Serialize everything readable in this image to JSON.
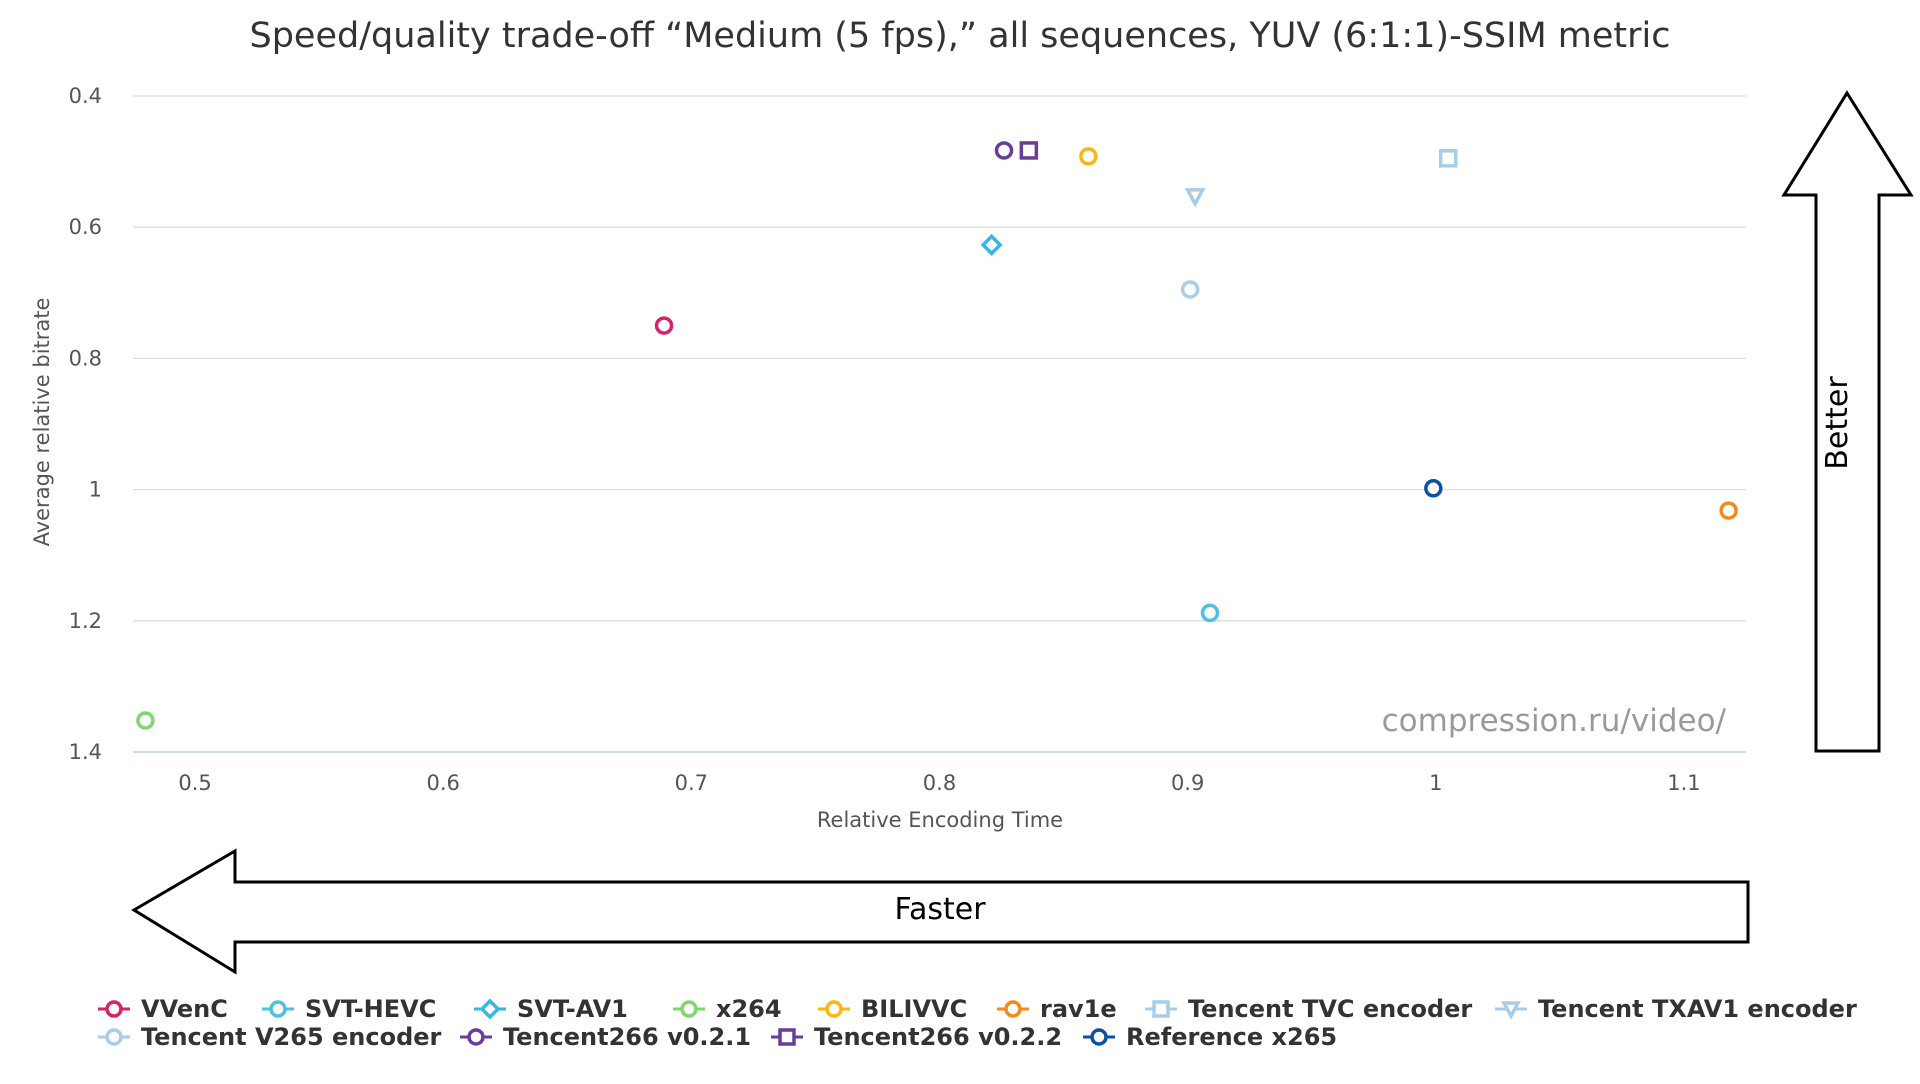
{
  "chart_data": {
    "type": "scatter",
    "title": "Speed/quality trade-off “Medium (5 fps),” all sequences, YUV (6:1:1)-SSIM metric",
    "xlabel": "Relative Encoding Time",
    "ylabel": "Average relative bitrate",
    "xlim": [
      0.475,
      1.125
    ],
    "ylim": [
      0.4,
      1.4
    ],
    "y_reversed": true,
    "x_ticks": [
      "0.5",
      "0.6",
      "0.7",
      "0.8",
      "0.9",
      "1",
      "1.1"
    ],
    "y_ticks": [
      "0.4",
      "0.6",
      "0.8",
      "1",
      "1.2",
      "1.4"
    ],
    "grid": true,
    "legend_position": "bottom",
    "watermark": "compression.ru/video/",
    "arrows": {
      "left_label": "Faster",
      "up_label": "Better"
    },
    "series": [
      {
        "name": "VVenC",
        "marker": "circle",
        "color": "#d6236a",
        "x": 0.689,
        "y": 0.75
      },
      {
        "name": "SVT-HEVC",
        "marker": "circle",
        "color": "#4fc1e0",
        "x": 0.909,
        "y": 1.188
      },
      {
        "name": "SVT-AV1",
        "marker": "diamond",
        "color": "#36b6e3",
        "x": 0.821,
        "y": 0.627
      },
      {
        "name": "x264",
        "marker": "circle",
        "color": "#7ed86e",
        "x": 0.48,
        "y": 1.352
      },
      {
        "name": "BILIVVC",
        "marker": "circle",
        "color": "#f9b616",
        "x": 0.86,
        "y": 0.492
      },
      {
        "name": "rav1e",
        "marker": "circle",
        "color": "#f28b1e",
        "x": 1.118,
        "y": 1.032
      },
      {
        "name": "Tencent TVC encoder",
        "marker": "square",
        "color": "#a9cde8",
        "x": 1.005,
        "y": 0.495
      },
      {
        "name": "Tencent TXAV1 encoder",
        "marker": "triangle-down",
        "color": "#a9cde8",
        "x": 0.903,
        "y": 0.553
      },
      {
        "name": "Tencent V265 encoder",
        "marker": "circle",
        "color": "#a9cde8",
        "x": 0.901,
        "y": 0.695
      },
      {
        "name": "Tencent266 v0.2.1",
        "marker": "circle",
        "color": "#6a3d9a",
        "x": 0.826,
        "y": 0.483
      },
      {
        "name": "Tencent266 v0.2.2",
        "marker": "square",
        "color": "#6a3d9a",
        "x": 0.836,
        "y": 0.483
      },
      {
        "name": "Reference x265",
        "marker": "circle",
        "color": "#0d4fa6",
        "x": 0.999,
        "y": 0.998
      }
    ]
  }
}
